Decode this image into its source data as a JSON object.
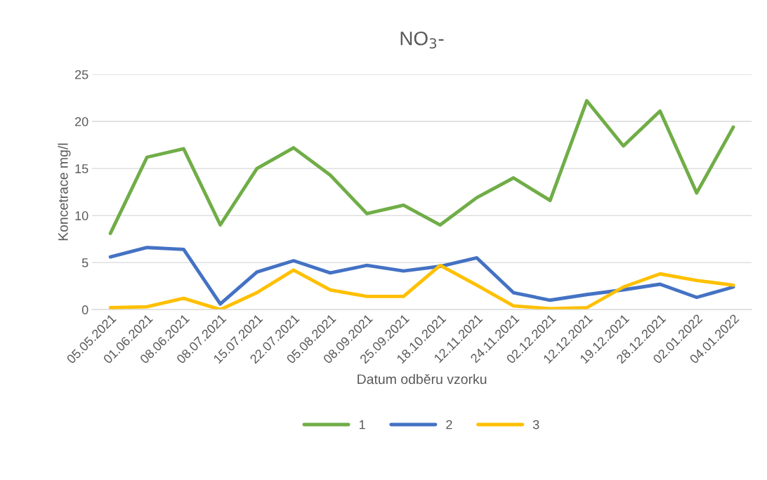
{
  "chart_data": {
    "type": "line",
    "title": "NO$_{3}$-",
    "xlabel": "Datum odběru vzorku",
    "ylabel": "Koncetrace mg/l",
    "categories": [
      "05.05.2021",
      "01.06.2021",
      "08.06.2021",
      "08.07.2021",
      "15.07.2021",
      "22.07.2021",
      "05.08.2021",
      "08.09.2021",
      "25.09.2021",
      "18.10.2021",
      "12.11.2021",
      "24.11.2021",
      "02.12.2021",
      "12.12.2021",
      "19.12.2021",
      "28.12.2021",
      "02.01.2022",
      "04.01.2022"
    ],
    "series": [
      {
        "name": "1",
        "color": "#70ad47",
        "values": [
          8.1,
          16.2,
          17.1,
          9.0,
          15.0,
          17.2,
          14.3,
          10.2,
          11.1,
          9.0,
          11.9,
          14.0,
          11.6,
          22.2,
          17.4,
          21.1,
          12.4,
          19.4
        ]
      },
      {
        "name": "2",
        "color": "#4472c4",
        "values": [
          5.6,
          6.6,
          6.4,
          0.6,
          4.0,
          5.2,
          3.9,
          4.7,
          4.1,
          4.6,
          5.5,
          1.8,
          1.0,
          1.6,
          2.1,
          2.7,
          1.3,
          2.4
        ]
      },
      {
        "name": "3",
        "color": "#ffc000",
        "values": [
          0.2,
          0.3,
          1.2,
          0.0,
          1.8,
          4.2,
          2.1,
          1.4,
          1.4,
          4.7,
          2.6,
          0.4,
          0.1,
          0.2,
          2.4,
          3.8,
          3.1,
          2.6
        ]
      }
    ],
    "ylim": [
      0,
      25
    ],
    "yticks": [
      0,
      5,
      10,
      15,
      20,
      25
    ],
    "grid": "y",
    "legend": "bottom",
    "marker": "none",
    "line_style": "solid"
  }
}
